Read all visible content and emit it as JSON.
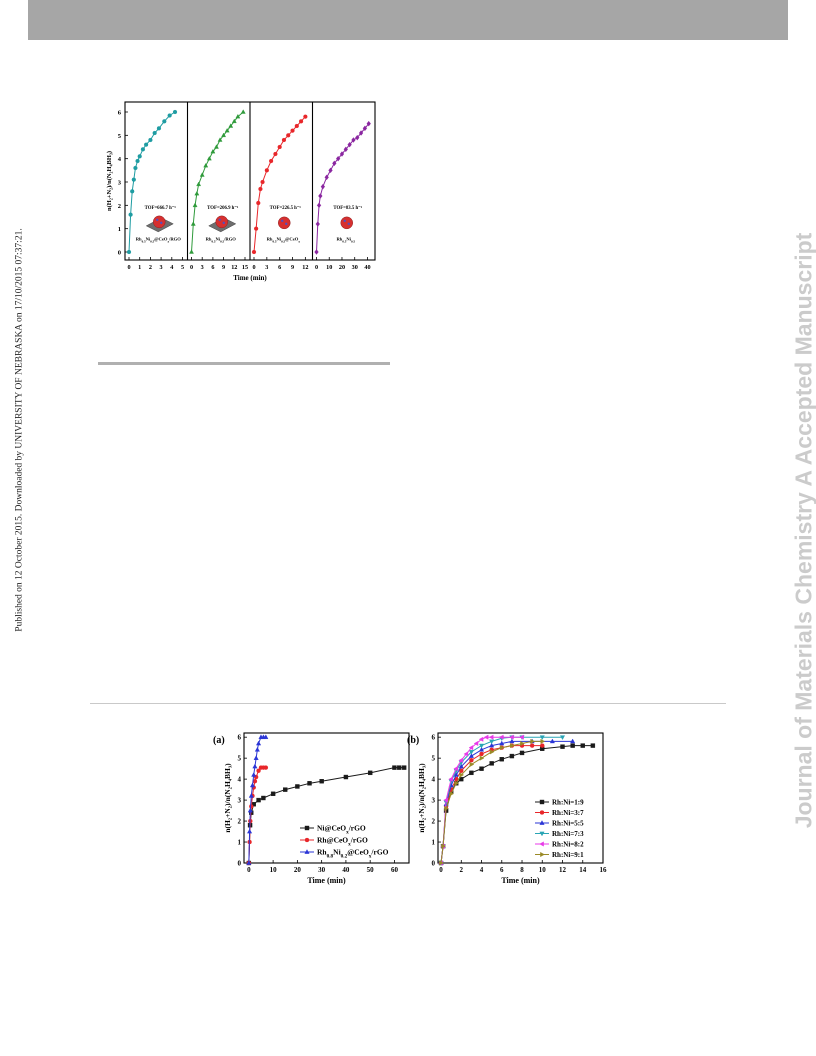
{
  "page": {
    "side_note": "Published on 12 October 2015. Downloaded by UNIVERSITY OF NEBRASKA on 17/10/2015 07:37:21.",
    "watermark": "Journal of Materials Chemistry A Accepted Manuscript"
  },
  "colors": {
    "teal": "#1e9ca2",
    "green": "#2e9a3a",
    "red": "#e8262a",
    "purple": "#8a26a0",
    "black": "#1a1a1a",
    "blue": "#2a35d6",
    "cyan": "#2aa5b5",
    "magenta": "#e83ae8",
    "olive": "#9a8a26"
  },
  "chart_data": [
    {
      "type": "line",
      "ylabel": "n(H2+N2)/n(N2H4BH3)",
      "xlabel": "Time (min)",
      "ylim": [
        0,
        6
      ],
      "panels": [
        {
          "name": "Rh0.5Ni0.5@CeOx/RGO",
          "tof": "TOF=666.7 h⁻¹",
          "xlim": [
            0,
            5
          ],
          "xticks": [
            0,
            1,
            2,
            3,
            4,
            5
          ],
          "color": "#1e9ca2",
          "marker": "circle",
          "x": [
            0,
            0.15,
            0.3,
            0.45,
            0.6,
            0.8,
            1.0,
            1.3,
            1.6,
            2.0,
            2.4,
            2.8,
            3.3,
            3.8,
            4.3
          ],
          "y": [
            0,
            1.6,
            2.6,
            3.1,
            3.6,
            3.9,
            4.1,
            4.4,
            4.6,
            4.8,
            5.1,
            5.3,
            5.6,
            5.85,
            6.0
          ]
        },
        {
          "name": "Rh0.5Ni0.5/RGO",
          "tof": "TOF=206.9 h⁻¹",
          "xlim": [
            0,
            15
          ],
          "xticks": [
            0,
            3,
            6,
            9,
            12,
            15
          ],
          "color": "#2e9a3a",
          "marker": "triangle",
          "x": [
            0,
            0.5,
            1,
            1.5,
            2,
            3,
            4,
            5,
            6,
            7,
            8,
            9,
            10,
            11,
            12,
            13,
            14.5
          ],
          "y": [
            0,
            1.2,
            2.0,
            2.5,
            2.9,
            3.3,
            3.7,
            4.0,
            4.3,
            4.5,
            4.8,
            5.0,
            5.2,
            5.4,
            5.6,
            5.8,
            6.0
          ]
        },
        {
          "name": "Rh0.5Ni0.5@CeOx",
          "tof": "TOF=226.5 h⁻¹",
          "xlim": [
            0,
            12.5
          ],
          "xticks": [
            0,
            3,
            6,
            9,
            12
          ],
          "color": "#e8262a",
          "marker": "circle",
          "x": [
            0,
            0.5,
            1,
            1.5,
            2,
            3,
            4,
            5,
            6,
            7,
            8,
            9,
            10,
            11,
            12
          ],
          "y": [
            0,
            1.0,
            2.1,
            2.7,
            3.0,
            3.5,
            3.9,
            4.2,
            4.5,
            4.8,
            5.0,
            5.2,
            5.4,
            5.6,
            5.8
          ]
        },
        {
          "name": "Rh0.5Ni0.5",
          "tof": "TOF=83.5 h⁻¹",
          "xlim": [
            0,
            42
          ],
          "xticks": [
            0,
            10,
            20,
            30,
            40
          ],
          "color": "#8a26a0",
          "marker": "diamond",
          "x": [
            0,
            1,
            2,
            3,
            5,
            8,
            11,
            14,
            17,
            20,
            23,
            26,
            29,
            32,
            35,
            38,
            41
          ],
          "y": [
            0,
            1.2,
            2.0,
            2.4,
            2.8,
            3.2,
            3.5,
            3.8,
            4.0,
            4.2,
            4.4,
            4.6,
            4.8,
            4.9,
            5.1,
            5.3,
            5.5
          ]
        }
      ]
    },
    {
      "type": "line",
      "panel_label": "(a)",
      "ylabel": "n(H2+N2)/n(N2H4BH3)",
      "xlabel": "Time (min)",
      "ylim": [
        0,
        6.2
      ],
      "xlim": [
        -2,
        66
      ],
      "xticks": [
        0,
        10,
        20,
        30,
        40,
        50,
        60
      ],
      "yticks": [
        0,
        1,
        2,
        3,
        4,
        5,
        6
      ],
      "legend": "bottom-right",
      "series": [
        {
          "name": "Ni@CeOx/rGO",
          "color": "#1a1a1a",
          "marker": "square",
          "x": [
            0,
            0.5,
            1,
            2,
            4,
            6,
            10,
            15,
            20,
            25,
            30,
            40,
            50,
            60,
            62,
            64
          ],
          "y": [
            0,
            1.8,
            2.4,
            2.8,
            3.0,
            3.1,
            3.3,
            3.5,
            3.65,
            3.8,
            3.9,
            4.1,
            4.3,
            4.55,
            4.55,
            4.55
          ]
        },
        {
          "name": "Rh@CeOx/rGO",
          "color": "#e8262a",
          "marker": "circle",
          "x": [
            0,
            0.3,
            0.6,
            1,
            1.5,
            2,
            2.5,
            3,
            4,
            5,
            6,
            7
          ],
          "y": [
            0,
            1.0,
            2.0,
            2.7,
            3.2,
            3.6,
            3.9,
            4.1,
            4.4,
            4.55,
            4.55,
            4.55
          ]
        },
        {
          "name": "Rh0.8Ni0.2@CeOx/rGO",
          "color": "#2a35d6",
          "marker": "triangle",
          "x": [
            0,
            0.3,
            0.6,
            1,
            1.5,
            2,
            2.5,
            3,
            3.5,
            4,
            5,
            6,
            7
          ],
          "y": [
            0,
            1.5,
            2.5,
            3.2,
            3.7,
            4.2,
            4.6,
            5.0,
            5.4,
            5.7,
            6.0,
            6.0,
            6.0
          ]
        }
      ]
    },
    {
      "type": "line",
      "panel_label": "(b)",
      "ylabel": "n(H2+N2)/n(N2H4BH3)",
      "xlabel": "Time (min)",
      "ylim": [
        0,
        6.2
      ],
      "xlim": [
        -0.3,
        16
      ],
      "xticks": [
        0,
        2,
        4,
        6,
        8,
        10,
        12,
        14,
        16
      ],
      "yticks": [
        0,
        1,
        2,
        3,
        4,
        5,
        6
      ],
      "legend": "bottom-right",
      "series": [
        {
          "name": "Rh:Ni=1:9",
          "color": "#1a1a1a",
          "marker": "square",
          "x": [
            0,
            0.2,
            0.5,
            1,
            1.5,
            2,
            3,
            4,
            5,
            6,
            7,
            8,
            10,
            12,
            13,
            14,
            15
          ],
          "y": [
            0,
            0.8,
            2.5,
            3.4,
            3.8,
            4.0,
            4.3,
            4.5,
            4.75,
            4.95,
            5.1,
            5.25,
            5.45,
            5.55,
            5.6,
            5.6,
            5.6
          ]
        },
        {
          "name": "Rh:Ni=3:7",
          "color": "#e8262a",
          "marker": "circle",
          "x": [
            0,
            0.2,
            0.5,
            1,
            1.5,
            2,
            3,
            4,
            5,
            6,
            7,
            8,
            9,
            10
          ],
          "y": [
            0,
            0.8,
            2.7,
            3.5,
            4.0,
            4.4,
            4.9,
            5.2,
            5.4,
            5.5,
            5.6,
            5.6,
            5.6,
            5.6
          ]
        },
        {
          "name": "Rh:Ni=5:5",
          "color": "#2a35d6",
          "marker": "triangle",
          "x": [
            0,
            0.2,
            0.5,
            1,
            1.5,
            2,
            3,
            4,
            5,
            6,
            7,
            9,
            11,
            13
          ],
          "y": [
            0,
            0.8,
            2.8,
            3.7,
            4.2,
            4.6,
            5.1,
            5.4,
            5.6,
            5.7,
            5.8,
            5.8,
            5.8,
            5.8
          ]
        },
        {
          "name": "Rh:Ni=7:3",
          "color": "#2aa5b5",
          "marker": "triangle-down",
          "x": [
            0,
            0.2,
            0.5,
            1,
            1.5,
            2,
            3,
            4,
            5,
            6,
            7,
            8,
            10,
            12
          ],
          "y": [
            0,
            0.8,
            2.9,
            3.9,
            4.4,
            4.8,
            5.3,
            5.6,
            5.8,
            5.95,
            6.0,
            6.0,
            6.0,
            6.0
          ]
        },
        {
          "name": "Rh:Ni=8:2",
          "color": "#e83ae8",
          "marker": "triangle-left",
          "x": [
            0,
            0.2,
            0.5,
            1,
            1.5,
            2,
            2.5,
            3,
            3.5,
            4,
            4.5,
            5,
            6,
            7,
            8
          ],
          "y": [
            0,
            0.8,
            3.0,
            4.0,
            4.5,
            4.9,
            5.2,
            5.5,
            5.7,
            5.9,
            6.0,
            6.0,
            6.0,
            6.0,
            6.0
          ]
        },
        {
          "name": "Rh:Ni=9:1",
          "color": "#9a8a26",
          "marker": "triangle-right",
          "x": [
            0,
            0.2,
            0.5,
            1,
            1.5,
            2,
            3,
            4,
            5,
            6,
            7,
            8,
            9,
            10
          ],
          "y": [
            0,
            0.8,
            2.6,
            3.3,
            3.8,
            4.2,
            4.7,
            5.0,
            5.3,
            5.5,
            5.6,
            5.7,
            5.8,
            5.8
          ]
        }
      ]
    }
  ]
}
